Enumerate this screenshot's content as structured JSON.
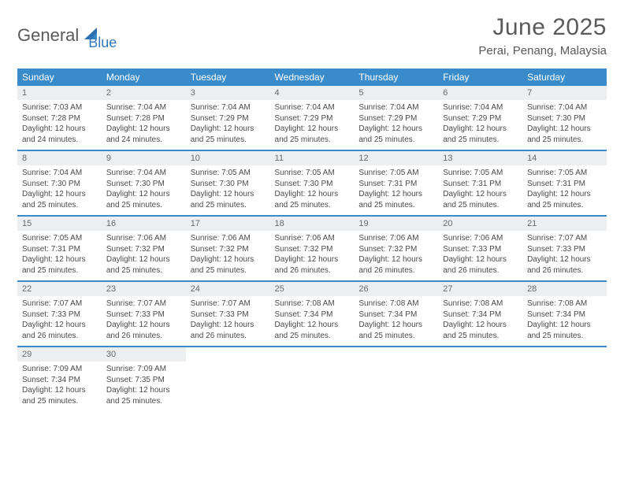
{
  "brand": {
    "part1": "General",
    "part2": "Blue"
  },
  "title": "June 2025",
  "location": "Perai, Penang, Malaysia",
  "colors": {
    "header_bg": "#3a8bc9",
    "header_text": "#ffffff",
    "daynum_bg": "#eceeef",
    "daynum_text": "#6a6a6a",
    "body_text": "#4a4a4a",
    "title_text": "#5a5a5a",
    "border": "#3a8bc9",
    "logo_gray": "#5a5a5a",
    "logo_blue": "#3277bd"
  },
  "weekdays": [
    "Sunday",
    "Monday",
    "Tuesday",
    "Wednesday",
    "Thursday",
    "Friday",
    "Saturday"
  ],
  "days": [
    {
      "n": 1,
      "sr": "7:03 AM",
      "ss": "7:28 PM",
      "dl": "12 hours and 24 minutes."
    },
    {
      "n": 2,
      "sr": "7:04 AM",
      "ss": "7:28 PM",
      "dl": "12 hours and 24 minutes."
    },
    {
      "n": 3,
      "sr": "7:04 AM",
      "ss": "7:29 PM",
      "dl": "12 hours and 25 minutes."
    },
    {
      "n": 4,
      "sr": "7:04 AM",
      "ss": "7:29 PM",
      "dl": "12 hours and 25 minutes."
    },
    {
      "n": 5,
      "sr": "7:04 AM",
      "ss": "7:29 PM",
      "dl": "12 hours and 25 minutes."
    },
    {
      "n": 6,
      "sr": "7:04 AM",
      "ss": "7:29 PM",
      "dl": "12 hours and 25 minutes."
    },
    {
      "n": 7,
      "sr": "7:04 AM",
      "ss": "7:30 PM",
      "dl": "12 hours and 25 minutes."
    },
    {
      "n": 8,
      "sr": "7:04 AM",
      "ss": "7:30 PM",
      "dl": "12 hours and 25 minutes."
    },
    {
      "n": 9,
      "sr": "7:04 AM",
      "ss": "7:30 PM",
      "dl": "12 hours and 25 minutes."
    },
    {
      "n": 10,
      "sr": "7:05 AM",
      "ss": "7:30 PM",
      "dl": "12 hours and 25 minutes."
    },
    {
      "n": 11,
      "sr": "7:05 AM",
      "ss": "7:30 PM",
      "dl": "12 hours and 25 minutes."
    },
    {
      "n": 12,
      "sr": "7:05 AM",
      "ss": "7:31 PM",
      "dl": "12 hours and 25 minutes."
    },
    {
      "n": 13,
      "sr": "7:05 AM",
      "ss": "7:31 PM",
      "dl": "12 hours and 25 minutes."
    },
    {
      "n": 14,
      "sr": "7:05 AM",
      "ss": "7:31 PM",
      "dl": "12 hours and 25 minutes."
    },
    {
      "n": 15,
      "sr": "7:05 AM",
      "ss": "7:31 PM",
      "dl": "12 hours and 25 minutes."
    },
    {
      "n": 16,
      "sr": "7:06 AM",
      "ss": "7:32 PM",
      "dl": "12 hours and 25 minutes."
    },
    {
      "n": 17,
      "sr": "7:06 AM",
      "ss": "7:32 PM",
      "dl": "12 hours and 25 minutes."
    },
    {
      "n": 18,
      "sr": "7:06 AM",
      "ss": "7:32 PM",
      "dl": "12 hours and 26 minutes."
    },
    {
      "n": 19,
      "sr": "7:06 AM",
      "ss": "7:32 PM",
      "dl": "12 hours and 26 minutes."
    },
    {
      "n": 20,
      "sr": "7:06 AM",
      "ss": "7:33 PM",
      "dl": "12 hours and 26 minutes."
    },
    {
      "n": 21,
      "sr": "7:07 AM",
      "ss": "7:33 PM",
      "dl": "12 hours and 26 minutes."
    },
    {
      "n": 22,
      "sr": "7:07 AM",
      "ss": "7:33 PM",
      "dl": "12 hours and 26 minutes."
    },
    {
      "n": 23,
      "sr": "7:07 AM",
      "ss": "7:33 PM",
      "dl": "12 hours and 26 minutes."
    },
    {
      "n": 24,
      "sr": "7:07 AM",
      "ss": "7:33 PM",
      "dl": "12 hours and 26 minutes."
    },
    {
      "n": 25,
      "sr": "7:08 AM",
      "ss": "7:34 PM",
      "dl": "12 hours and 25 minutes."
    },
    {
      "n": 26,
      "sr": "7:08 AM",
      "ss": "7:34 PM",
      "dl": "12 hours and 25 minutes."
    },
    {
      "n": 27,
      "sr": "7:08 AM",
      "ss": "7:34 PM",
      "dl": "12 hours and 25 minutes."
    },
    {
      "n": 28,
      "sr": "7:08 AM",
      "ss": "7:34 PM",
      "dl": "12 hours and 25 minutes."
    },
    {
      "n": 29,
      "sr": "7:09 AM",
      "ss": "7:34 PM",
      "dl": "12 hours and 25 minutes."
    },
    {
      "n": 30,
      "sr": "7:09 AM",
      "ss": "7:35 PM",
      "dl": "12 hours and 25 minutes."
    }
  ],
  "labels": {
    "sunrise": "Sunrise:",
    "sunset": "Sunset:",
    "daylight": "Daylight:"
  }
}
